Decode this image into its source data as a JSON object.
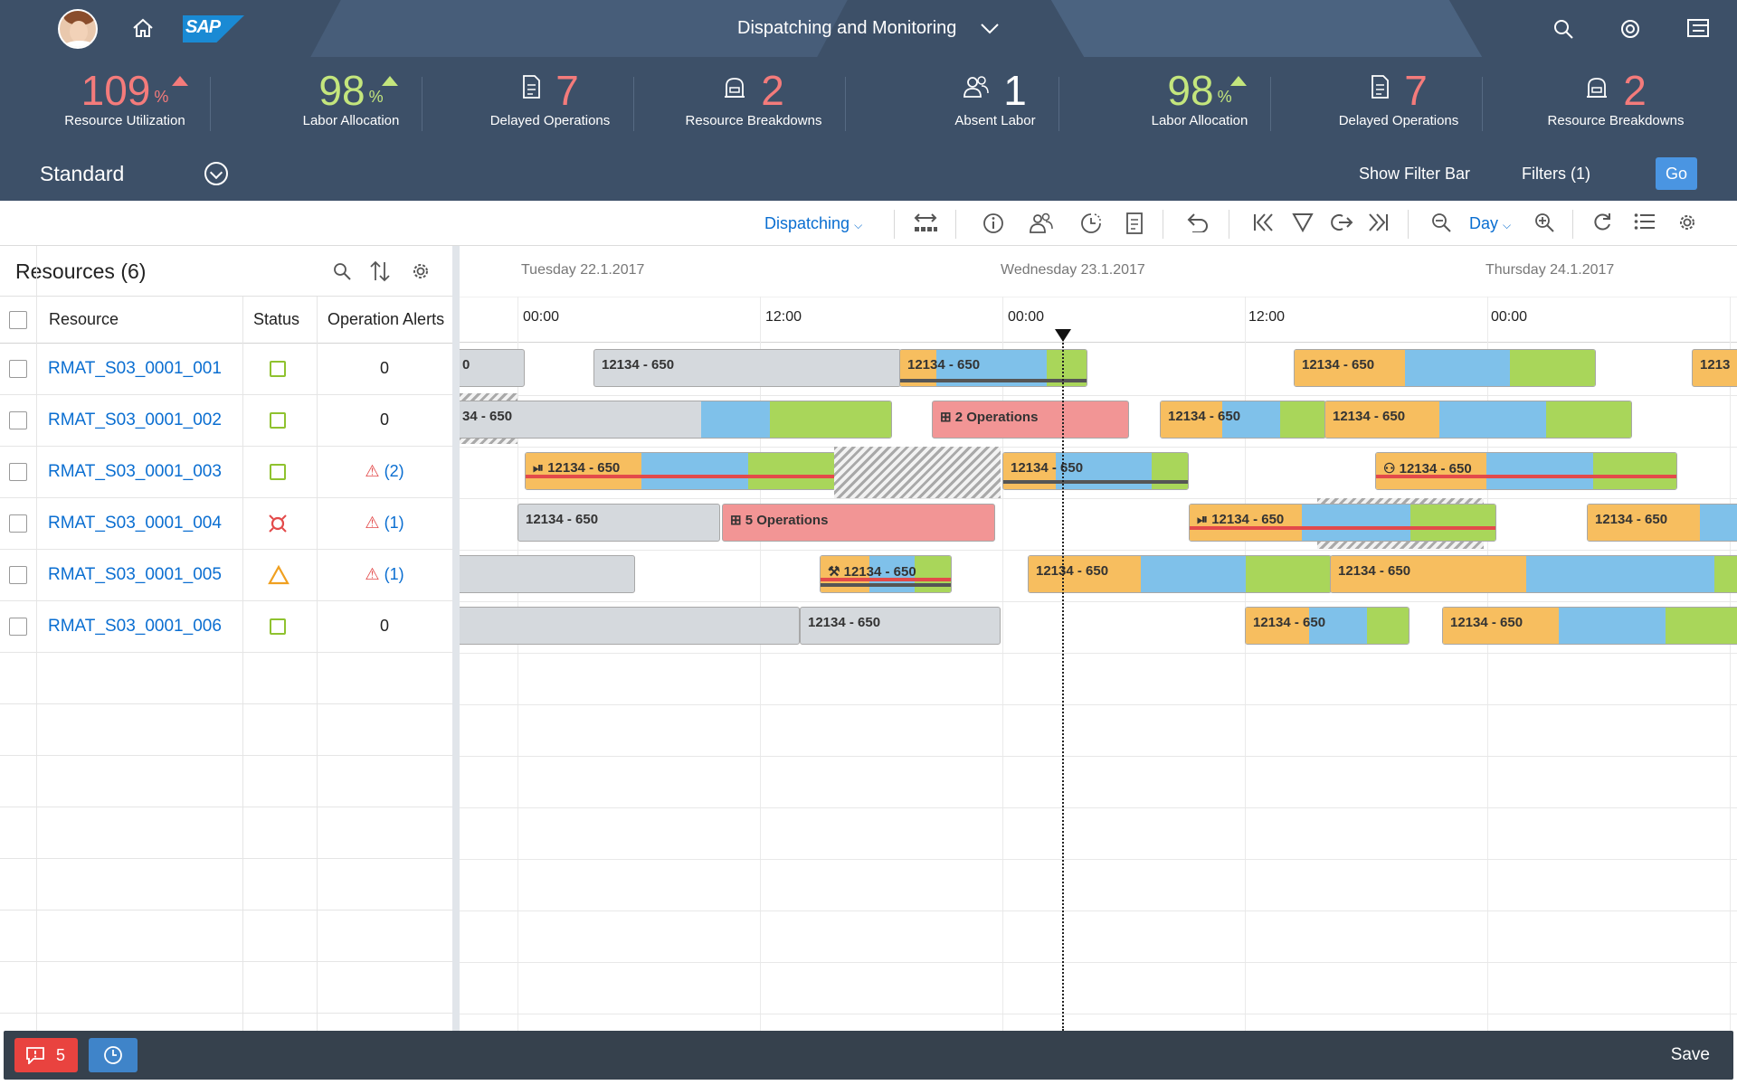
{
  "shell": {
    "title": "Dispatching and Monitoring",
    "logo_text": "SAP",
    "icons": [
      "user-avatar",
      "home-icon",
      "search-icon",
      "notifications-icon",
      "menu-icon"
    ]
  },
  "kpis": [
    {
      "value": "109",
      "unit": "%",
      "label": "Resource Utilization",
      "trend": "up",
      "color": "#f47b7b"
    },
    {
      "value": "98",
      "unit": "%",
      "label": "Labor Allocation",
      "trend": "up",
      "color": "#c4e67d"
    },
    {
      "value": "7",
      "unit": "",
      "label": "Delayed Operations",
      "icon": "document-list-icon",
      "color": "#f47b7b"
    },
    {
      "value": "2",
      "unit": "",
      "label": "Resource Breakdowns",
      "icon": "machine-icon",
      "color": "#f47b7b"
    },
    {
      "value": "1",
      "unit": "",
      "label": "Absent Labor",
      "icon": "people-icon",
      "color": "#ffffff"
    },
    {
      "value": "98",
      "unit": "%",
      "label": "Labor Allocation",
      "trend": "up",
      "color": "#c4e67d"
    },
    {
      "value": "7",
      "unit": "",
      "label": "Delayed Operations",
      "icon": "document-list-icon",
      "color": "#f47b7b"
    },
    {
      "value": "2",
      "unit": "",
      "label": "Resource Breakdowns",
      "icon": "machine-icon",
      "color": "#f47b7b"
    }
  ],
  "variant": {
    "name": "Standard",
    "show_filter_bar": "Show Filter Bar",
    "filters": "Filters (1)",
    "go": "Go"
  },
  "toolbar": {
    "mode": "Dispatching",
    "zoom_level": "Day"
  },
  "resources": {
    "title": "Resources (6)",
    "columns": [
      "Resource",
      "Status",
      "Operation Alerts"
    ],
    "rows": [
      {
        "name": "RMAT_S03_0001_001",
        "status": "ok",
        "alerts": "0"
      },
      {
        "name": "RMAT_S03_0001_002",
        "status": "ok",
        "alerts": "0"
      },
      {
        "name": "RMAT_S03_0001_003",
        "status": "ok",
        "alerts": "(2)"
      },
      {
        "name": "RMAT_S03_0001_004",
        "status": "breakdown",
        "alerts": "(1)"
      },
      {
        "name": "RMAT_S03_0001_005",
        "status": "warning",
        "alerts": "(1)"
      },
      {
        "name": "RMAT_S03_0001_006",
        "status": "ok",
        "alerts": "0"
      }
    ]
  },
  "timeline": {
    "dates": [
      "Tuesday 22.1.2017",
      "Wednesday 23.1.2017",
      "Thursday 24.1.2017"
    ],
    "times": [
      "00:00",
      "12:00",
      "00:00",
      "12:00",
      "00:00"
    ],
    "op_label": "12134 - 650",
    "op_label_cut1": "0",
    "op_label_cut2": "34 - 650",
    "op_label_cut3": "1213",
    "two_ops": "2 Operations",
    "five_ops": "5 Operations"
  },
  "colors": {
    "shell": "#3d5068",
    "orange": "#f7be5f",
    "blue": "#7fc1ea",
    "green": "#a9d65a",
    "grey": "#d5d9dd",
    "red": "#f29595",
    "link": "#0a6ed1"
  },
  "footer": {
    "message_count": "5",
    "save": "Save"
  }
}
